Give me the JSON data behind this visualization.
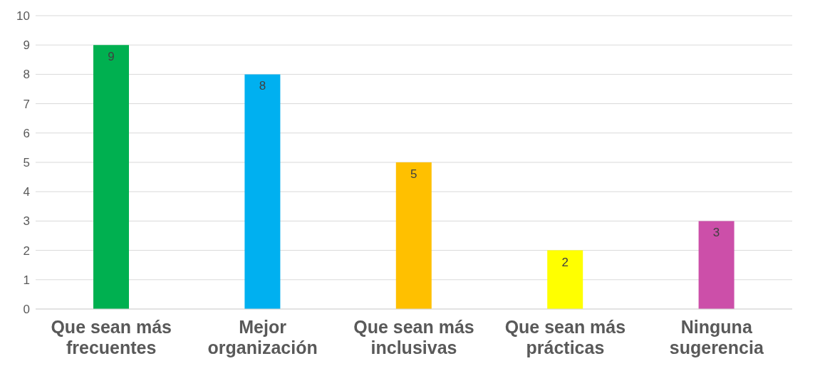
{
  "chart_data": {
    "type": "bar",
    "categories": [
      "Que sean más frecuentes",
      "Mejor organización",
      "Que sean más inclusivas",
      "Que sean más prácticas",
      "Ninguna sugerencia"
    ],
    "values": [
      9,
      8,
      5,
      2,
      3
    ],
    "colors": [
      "#00b050",
      "#00b0f0",
      "#ffc000",
      "#ffff00",
      "#cc4fa9"
    ],
    "ylim": [
      0,
      10
    ],
    "yticks": [
      0,
      1,
      2,
      3,
      4,
      5,
      6,
      7,
      8,
      9,
      10
    ],
    "grid": "y",
    "data_labels": true
  }
}
